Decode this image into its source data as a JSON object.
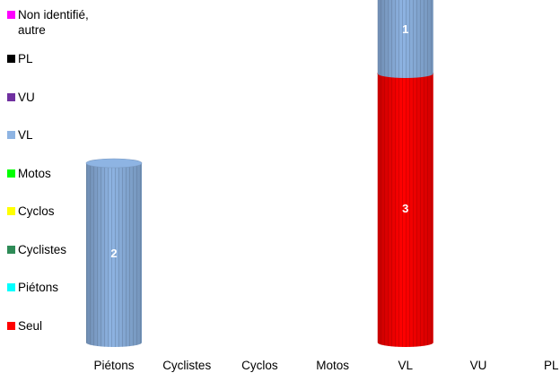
{
  "chart_data": {
    "type": "bar",
    "stacked": true,
    "style": "3d-cylinder",
    "categories": [
      "Piétons",
      "Cyclistes",
      "Cyclos",
      "Motos",
      "VL",
      "VU",
      "PL"
    ],
    "series": [
      {
        "name": "Seul",
        "color": "#ff0000",
        "values": [
          0,
          0,
          0,
          0,
          3,
          0,
          0
        ]
      },
      {
        "name": "Piétons",
        "color": "#00ffff",
        "values": [
          0,
          0,
          0,
          0,
          0,
          0,
          0
        ]
      },
      {
        "name": "Cyclistes",
        "color": "#2e8b57",
        "values": [
          0,
          0,
          0,
          0,
          0,
          0,
          0
        ]
      },
      {
        "name": "Cyclos",
        "color": "#ffff00",
        "values": [
          0,
          0,
          0,
          0,
          0,
          0,
          0
        ]
      },
      {
        "name": "Motos",
        "color": "#00ff00",
        "values": [
          0,
          0,
          0,
          0,
          0,
          0,
          0
        ]
      },
      {
        "name": "VL",
        "color": "#8eb4e3",
        "values": [
          2,
          0,
          0,
          0,
          1,
          0,
          0
        ]
      },
      {
        "name": "VU",
        "color": "#7030a0",
        "values": [
          0,
          0,
          0,
          0,
          0,
          0,
          0
        ]
      },
      {
        "name": "PL",
        "color": "#000000",
        "values": [
          0,
          0,
          0,
          0,
          0,
          0,
          0
        ]
      },
      {
        "name": "Non identifié,\nautre",
        "color": "#ff00ff",
        "values": [
          0,
          0,
          0,
          0,
          0,
          0,
          0
        ]
      }
    ],
    "ylim": [
      0,
      4
    ],
    "legend": "left",
    "grid": false
  }
}
